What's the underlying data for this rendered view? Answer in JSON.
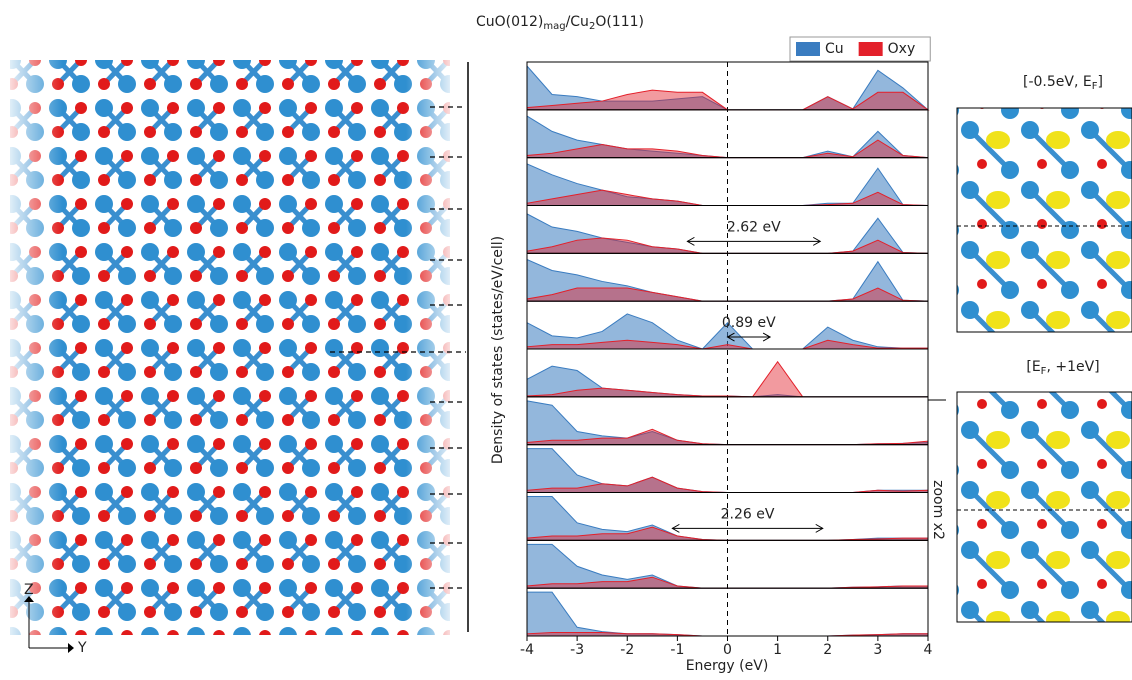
{
  "chart_data": {
    "type": "area",
    "title_parts": [
      "CuO(012)",
      "mag",
      "/Cu",
      "2",
      "O(111)"
    ],
    "ylabel": "Density of states (states/eV/cell)",
    "xlabel": "Energy (eV)",
    "xlim": [
      -4,
      4
    ],
    "xticks": [
      -4,
      -3,
      -2,
      -1,
      0,
      1,
      2,
      3,
      4
    ],
    "ylim": [
      0,
      1
    ],
    "x": [
      -4,
      -3.5,
      -3,
      -2.5,
      -2,
      -1.5,
      -1,
      -0.5,
      0,
      0.5,
      1,
      1.5,
      2,
      2.5,
      3,
      3.5,
      4
    ],
    "series": [
      {
        "name": "Cu",
        "color": "#3a7cc0",
        "values": [
          [
            1,
            0.35,
            0.3,
            0.2,
            0.2,
            0.2,
            0.25,
            0.3,
            0,
            0,
            0,
            0,
            0.3,
            0.02,
            0.9,
            0.5,
            0
          ],
          [
            0.95,
            0.6,
            0.4,
            0.3,
            0.2,
            0.15,
            0.1,
            0.05,
            0,
            0,
            0,
            0,
            0.15,
            0.02,
            0.6,
            0.05,
            0
          ],
          [
            0.95,
            0.7,
            0.5,
            0.35,
            0.2,
            0.15,
            0.1,
            0,
            0,
            0,
            0,
            0,
            0.05,
            0.05,
            0.85,
            0.02,
            0
          ],
          [
            0.9,
            0.6,
            0.5,
            0.35,
            0.25,
            0.15,
            0.1,
            0,
            0,
            0,
            0,
            0,
            0,
            0.05,
            0.8,
            0.02,
            0
          ],
          [
            0.95,
            0.7,
            0.6,
            0.45,
            0.35,
            0.2,
            0.1,
            0,
            0,
            0,
            0,
            0,
            0,
            0.05,
            0.9,
            0.02,
            0
          ],
          [
            0.6,
            0.3,
            0.25,
            0.4,
            0.8,
            0.6,
            0.2,
            0,
            0.6,
            0,
            0,
            0,
            0.5,
            0.2,
            0.05,
            0.02,
            0.02
          ],
          [
            0.4,
            0.7,
            0.6,
            0.2,
            0.15,
            0.1,
            0.05,
            0.02,
            0.02,
            0,
            0.05,
            0,
            0,
            0,
            0,
            0,
            0
          ],
          [
            1,
            0.9,
            0.3,
            0.2,
            0.15,
            0.3,
            0.1,
            0.02,
            0,
            0,
            0,
            0,
            0,
            0,
            0.02,
            0.03,
            0.05
          ],
          [
            1,
            1,
            0.4,
            0.2,
            0.15,
            0.35,
            0.1,
            0.02,
            0,
            0,
            0,
            0,
            0,
            0,
            0.05,
            0.05,
            0.05
          ],
          [
            1,
            1,
            0.4,
            0.25,
            0.2,
            0.35,
            0.1,
            0.02,
            0,
            0,
            0,
            0,
            0,
            0.02,
            0.05,
            0.05,
            0.05
          ],
          [
            1,
            1,
            0.5,
            0.3,
            0.2,
            0.3,
            0.05,
            0,
            0,
            0,
            0,
            0,
            0,
            0.02,
            0.03,
            0.05,
            0.05
          ],
          [
            1,
            1,
            0.2,
            0.1,
            0.05,
            0.05,
            0.03,
            0,
            0,
            0,
            0,
            0,
            0,
            0.02,
            0.03,
            0.05,
            0.05
          ]
        ]
      },
      {
        "name": "Oxy",
        "color": "#e3202a",
        "values": [
          [
            0.05,
            0.1,
            0.15,
            0.2,
            0.35,
            0.45,
            0.4,
            0.4,
            0,
            0,
            0,
            0,
            0.3,
            0.02,
            0.4,
            0.4,
            0
          ],
          [
            0.05,
            0.1,
            0.2,
            0.3,
            0.2,
            0.2,
            0.15,
            0.05,
            0,
            0,
            0,
            0,
            0.1,
            0.02,
            0.4,
            0.05,
            0
          ],
          [
            0.05,
            0.15,
            0.25,
            0.35,
            0.25,
            0.15,
            0.1,
            0,
            0,
            0,
            0,
            0,
            0.02,
            0.05,
            0.3,
            0.02,
            0
          ],
          [
            0.05,
            0.15,
            0.3,
            0.35,
            0.3,
            0.15,
            0.1,
            0,
            0,
            0,
            0,
            0,
            0,
            0.05,
            0.3,
            0.02,
            0
          ],
          [
            0.05,
            0.15,
            0.3,
            0.3,
            0.3,
            0.2,
            0.1,
            0,
            0,
            0,
            0,
            0,
            0,
            0.05,
            0.3,
            0.02,
            0
          ],
          [
            0.05,
            0.1,
            0.1,
            0.15,
            0.2,
            0.15,
            0.1,
            0,
            0.1,
            0,
            0,
            0,
            0.2,
            0.1,
            0.02,
            0.02,
            0.02
          ],
          [
            0.02,
            0.05,
            0.15,
            0.2,
            0.15,
            0.1,
            0.05,
            0.02,
            0.02,
            0,
            0.8,
            0,
            0,
            0,
            0,
            0,
            0
          ],
          [
            0.05,
            0.1,
            0.1,
            0.15,
            0.15,
            0.35,
            0.1,
            0.02,
            0,
            0,
            0,
            0,
            0,
            0,
            0.02,
            0.03,
            0.08
          ],
          [
            0.05,
            0.1,
            0.1,
            0.2,
            0.15,
            0.35,
            0.1,
            0.02,
            0,
            0,
            0,
            0,
            0,
            0,
            0.05,
            0.03,
            0.05
          ],
          [
            0.05,
            0.1,
            0.1,
            0.15,
            0.15,
            0.3,
            0.1,
            0.02,
            0,
            0,
            0,
            0,
            0,
            0.02,
            0.03,
            0.05,
            0.05
          ],
          [
            0.05,
            0.1,
            0.1,
            0.15,
            0.15,
            0.25,
            0.05,
            0,
            0,
            0,
            0,
            0,
            0,
            0.02,
            0.03,
            0.05,
            0.05
          ],
          [
            0.05,
            0.08,
            0.08,
            0.08,
            0.05,
            0.05,
            0.03,
            0,
            0,
            0,
            0,
            0,
            0,
            0.02,
            0.03,
            0.05,
            0.05
          ]
        ]
      }
    ],
    "gap_labels": [
      null,
      null,
      null,
      "2.62 eV",
      null,
      "0.89 eV",
      null,
      null,
      null,
      "2.26 eV",
      null,
      null
    ],
    "gap_x": [
      null,
      null,
      null,
      [
        -0.8,
        1.85
      ],
      null,
      [
        0,
        0.85
      ],
      null,
      null,
      null,
      [
        -1.1,
        1.9
      ],
      null,
      null
    ],
    "zoom_label": "zoom x2",
    "isosurface_labels": [
      [
        "[-0.5eV, E",
        "F",
        "]"
      ],
      [
        "[E",
        "F",
        ", +1eV]"
      ]
    ],
    "axis_labels": [
      "Z",
      "Y"
    ]
  }
}
